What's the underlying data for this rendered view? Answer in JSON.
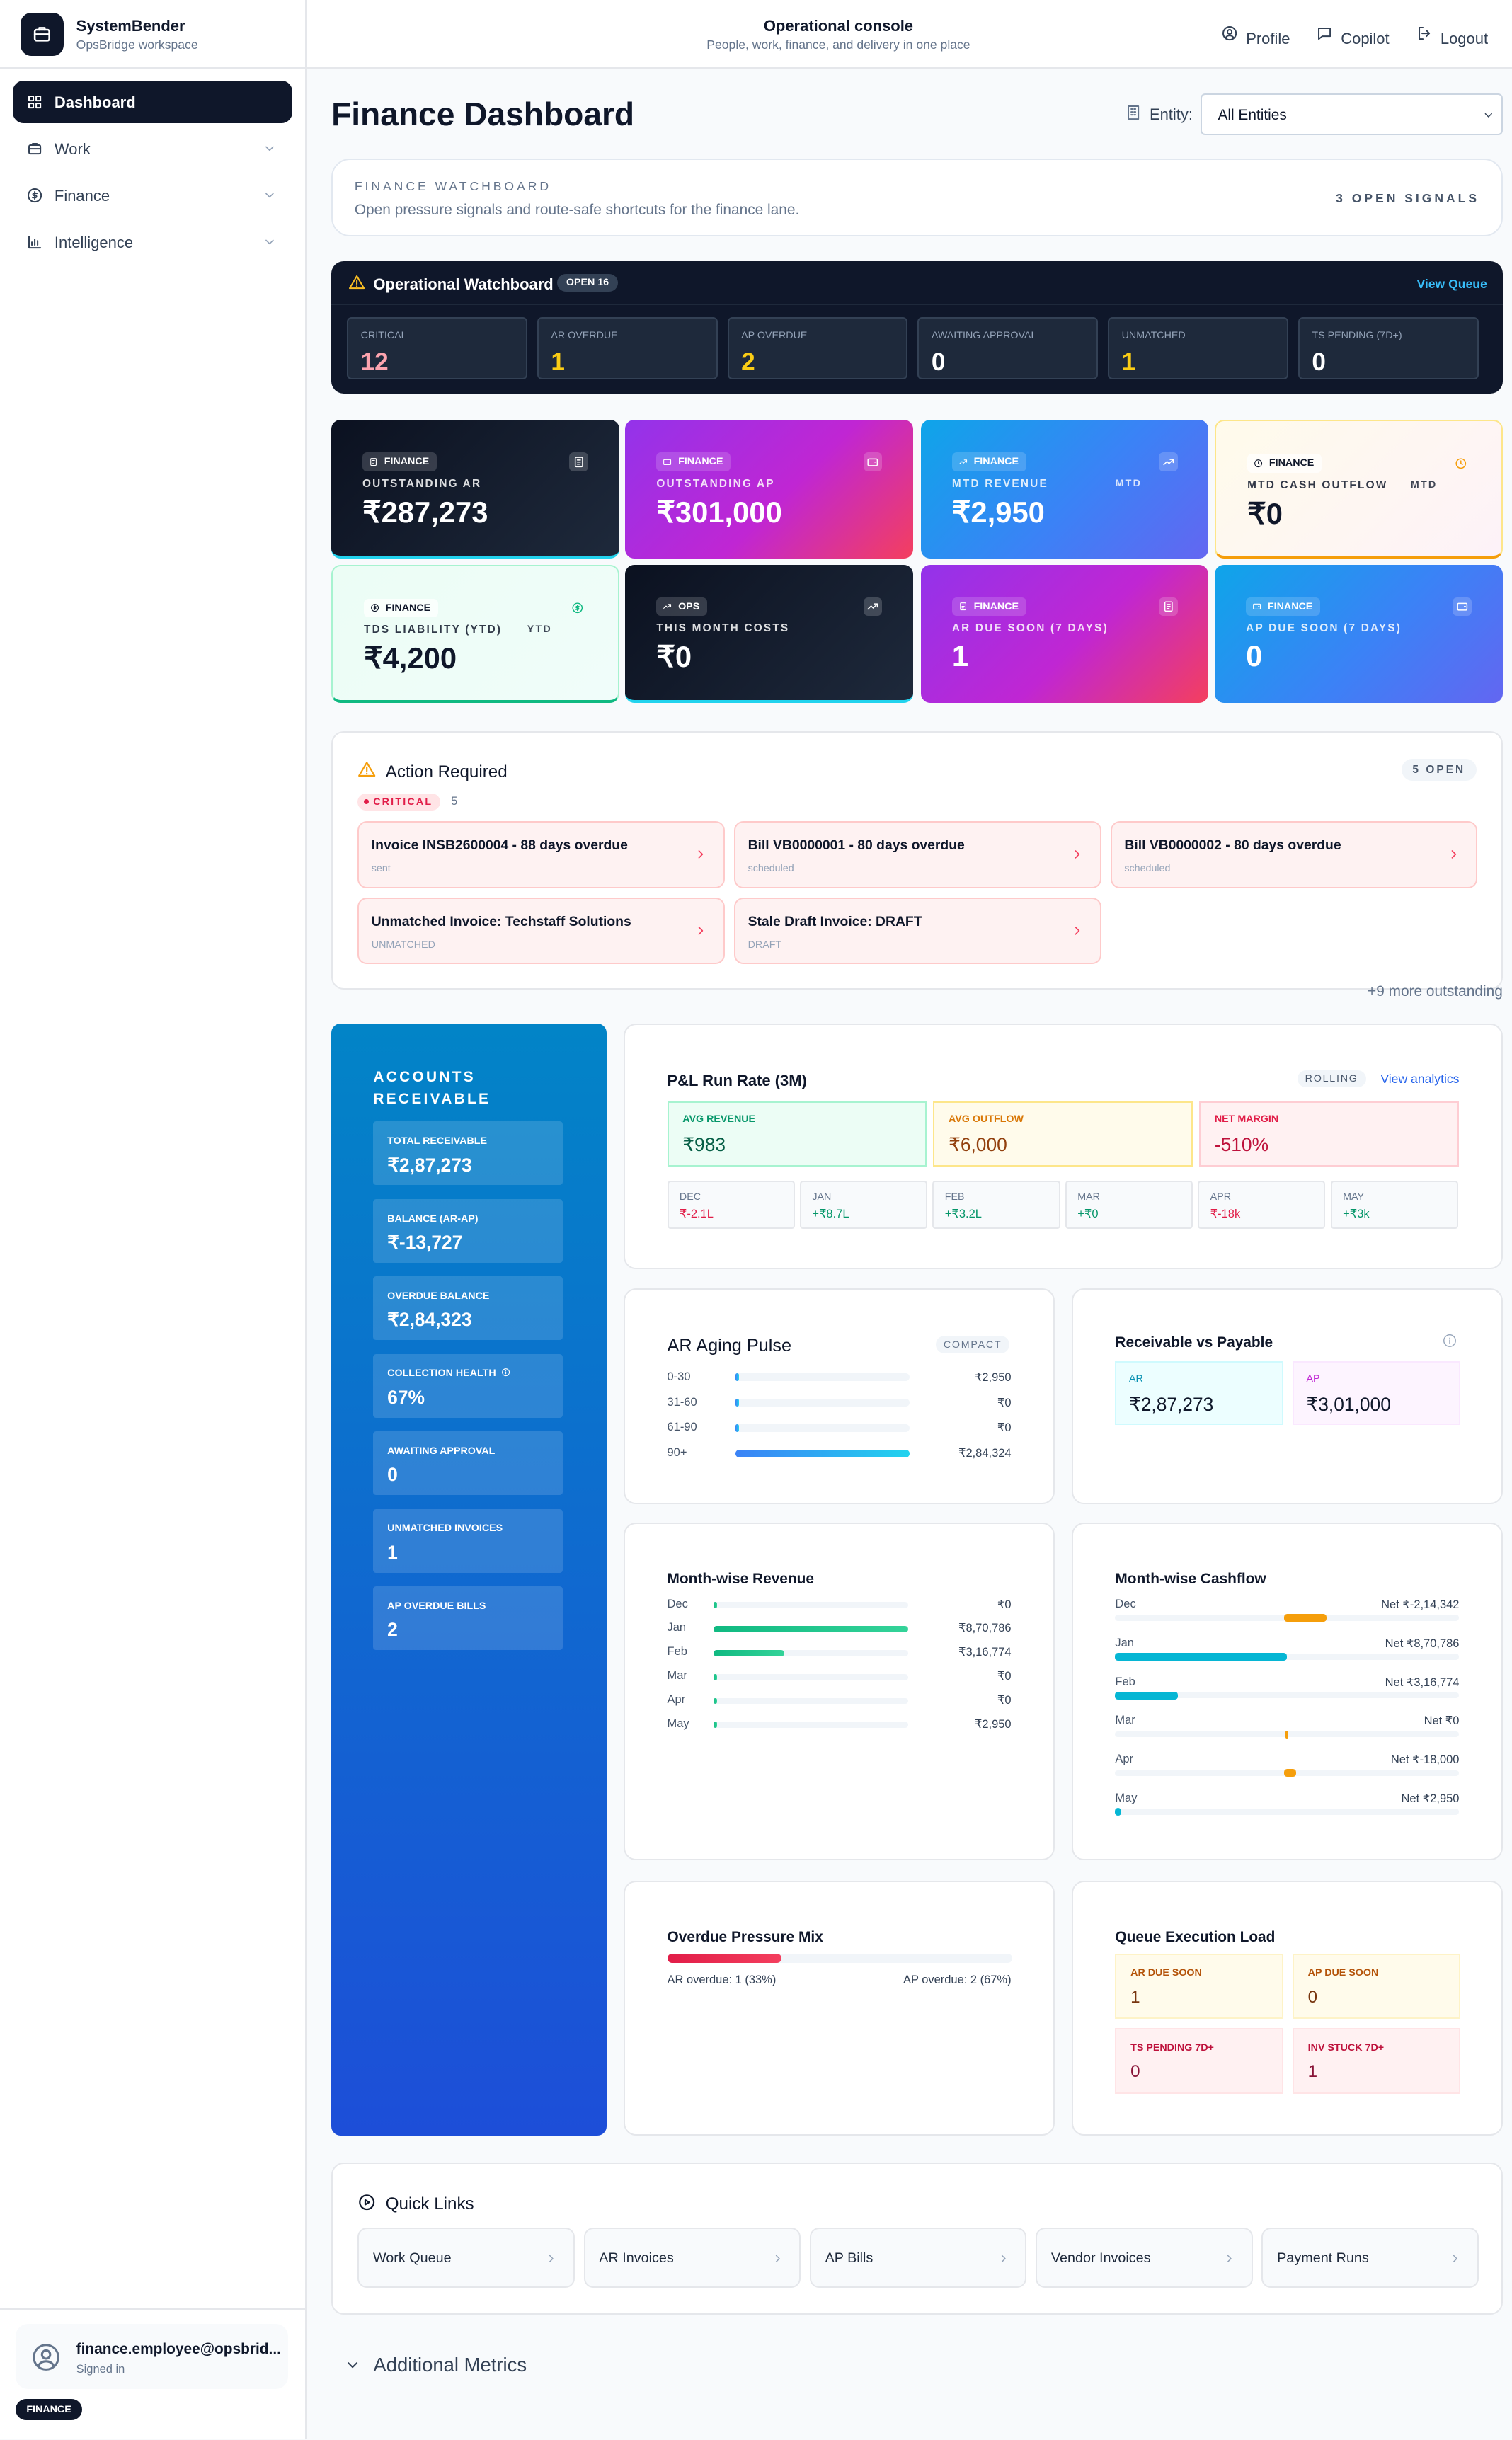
{
  "sidebar": {
    "brand": "SystemBender",
    "workspace": "OpsBridge workspace",
    "nav": [
      "Dashboard",
      "Work",
      "Finance",
      "Intelligence"
    ],
    "user": {
      "email": "finance.employee@opsbrid...",
      "status": "Signed in",
      "role": "FINANCE"
    }
  },
  "topbar": {
    "title": "Operational console",
    "subtitle": "People, work, finance, and delivery in one place",
    "actions": [
      "Profile",
      "Copilot",
      "Logout"
    ]
  },
  "header": {
    "title": "Finance Dashboard",
    "entity_label": "Entity:",
    "entity_value": "All Entities"
  },
  "watchboard": {
    "title": "FINANCE WATCHBOARD",
    "description": "Open pressure signals and route-safe shortcuts for the finance lane.",
    "signals": "3 OPEN SIGNALS"
  },
  "operational": {
    "title": "Operational Watchboard",
    "badge": "OPEN 16",
    "link": "View Queue",
    "tiles": [
      {
        "label": "CRITICAL",
        "value": 12
      },
      {
        "label": "AR OVERDUE",
        "value": 1
      },
      {
        "label": "AP OVERDUE",
        "value": 2
      },
      {
        "label": "AWAITING APPROVAL",
        "value": 0
      },
      {
        "label": "UNMATCHED",
        "value": 1
      },
      {
        "label": "TS PENDING (7D+)",
        "value": 0
      }
    ]
  },
  "kpis": [
    {
      "tag": "FINANCE",
      "label": "OUTSTANDING AR",
      "value": "₹287,273"
    },
    {
      "tag": "FINANCE",
      "label": "OUTSTANDING AP",
      "value": "₹301,000"
    },
    {
      "tag": "FINANCE",
      "label": "MTD REVENUE",
      "period": "MTD",
      "value": "₹2,950"
    },
    {
      "tag": "FINANCE",
      "label": "MTD CASH OUTFLOW",
      "period": "MTD",
      "value": "₹0"
    },
    {
      "tag": "FINANCE",
      "label": "TDS LIABILITY (YTD)",
      "period": "YTD",
      "value": "₹4,200"
    },
    {
      "tag": "OPS",
      "label": "THIS MONTH COSTS",
      "value": "₹0"
    },
    {
      "tag": "FINANCE",
      "label": "AR DUE SOON (7 DAYS)",
      "value": 1
    },
    {
      "tag": "FINANCE",
      "label": "AP DUE SOON (7 DAYS)",
      "value": 0
    }
  ],
  "action_required": {
    "title": "Action Required",
    "count": "5 OPEN",
    "severity": "CRITICAL",
    "severity_count": 5,
    "items": [
      {
        "title": "Invoice INSB2600004 - 88 days overdue",
        "status": "sent"
      },
      {
        "title": "Bill VB0000001 - 80 days overdue",
        "status": "scheduled"
      },
      {
        "title": "Bill VB0000002 - 80 days overdue",
        "status": "scheduled"
      },
      {
        "title": "Unmatched Invoice: Techstaff Solutions",
        "status": "UNMATCHED"
      },
      {
        "title": "Stale Draft Invoice: DRAFT",
        "status": "DRAFT"
      }
    ],
    "more": "+9 more outstanding"
  },
  "ar_panel": {
    "title": "ACCOUNTS RECEIVABLE",
    "tiles": [
      {
        "label": "TOTAL RECEIVABLE",
        "value": "₹2,87,273"
      },
      {
        "label": "BALANCE (AR-AP)",
        "value": "₹-13,727"
      },
      {
        "label": "OVERDUE BALANCE",
        "value": "₹2,84,323"
      },
      {
        "label": "COLLECTION HEALTH",
        "value": "67%"
      },
      {
        "label": "AWAITING APPROVAL",
        "value": 0
      },
      {
        "label": "UNMATCHED INVOICES",
        "value": 1
      },
      {
        "label": "AP OVERDUE BILLS",
        "value": 2
      }
    ]
  },
  "pnl": {
    "title": "P&L Run Rate (3M)",
    "badge": "ROLLING",
    "link": "View analytics",
    "summary": [
      {
        "label": "AVG REVENUE",
        "value": "₹983"
      },
      {
        "label": "AVG OUTFLOW",
        "value": "₹6,000"
      },
      {
        "label": "NET MARGIN",
        "value": "-510%"
      }
    ],
    "months": [
      {
        "label": "DEC",
        "value": "₹-2.1L"
      },
      {
        "label": "JAN",
        "value": "+₹8.7L"
      },
      {
        "label": "FEB",
        "value": "+₹3.2L"
      },
      {
        "label": "MAR",
        "value": "+₹0"
      },
      {
        "label": "APR",
        "value": "₹-18k"
      },
      {
        "label": "MAY",
        "value": "+₹3k"
      }
    ]
  },
  "ar_aging": {
    "title": "AR Aging Pulse",
    "badge": "COMPACT",
    "buckets": [
      {
        "label": "0-30",
        "amount": 2950,
        "amount_label": "₹2,950"
      },
      {
        "label": "31-60",
        "amount": 0,
        "amount_label": "₹0"
      },
      {
        "label": "61-90",
        "amount": 0,
        "amount_label": "₹0"
      },
      {
        "label": "90+",
        "amount": 284324,
        "amount_label": "₹2,84,324"
      }
    ]
  },
  "receivable_vs_payable": {
    "title": "Receivable vs Payable",
    "items": [
      {
        "label": "AR",
        "value": "₹2,87,273"
      },
      {
        "label": "AP",
        "value": "₹3,01,000"
      }
    ]
  },
  "revenue": {
    "title": "Month-wise Revenue",
    "months": [
      {
        "label": "Dec",
        "amount": 0,
        "amount_label": "₹0"
      },
      {
        "label": "Jan",
        "amount": 870786,
        "amount_label": "₹8,70,786"
      },
      {
        "label": "Feb",
        "amount": 316774,
        "amount_label": "₹3,16,774"
      },
      {
        "label": "Mar",
        "amount": 0,
        "amount_label": "₹0"
      },
      {
        "label": "Apr",
        "amount": 0,
        "amount_label": "₹0"
      },
      {
        "label": "May",
        "amount": 2950,
        "amount_label": "₹2,950"
      }
    ]
  },
  "cashflow": {
    "title": "Month-wise Cashflow",
    "months": [
      {
        "label": "Dec",
        "net": -214342,
        "net_label": "Net ₹-2,14,342"
      },
      {
        "label": "Jan",
        "net": 870786,
        "net_label": "Net ₹8,70,786"
      },
      {
        "label": "Feb",
        "net": 316774,
        "net_label": "Net ₹3,16,774"
      },
      {
        "label": "Mar",
        "net": 0,
        "net_label": "Net ₹0"
      },
      {
        "label": "Apr",
        "net": -18000,
        "net_label": "Net ₹-18,000"
      },
      {
        "label": "May",
        "net": 2950,
        "net_label": "Net ₹2,950"
      }
    ]
  },
  "overdue_mix": {
    "title": "Overdue Pressure Mix",
    "ar": "AR overdue: 1 (33%)",
    "ap": "AP overdue: 2 (67%)"
  },
  "queue_load": {
    "title": "Queue Execution Load",
    "tiles": [
      {
        "label": "AR DUE SOON",
        "value": 1
      },
      {
        "label": "AP DUE SOON",
        "value": 0
      },
      {
        "label": "TS PENDING 7D+",
        "value": 0
      },
      {
        "label": "INV STUCK 7D+",
        "value": 1
      }
    ]
  },
  "quick_links": {
    "title": "Quick Links",
    "links": [
      "Work Queue",
      "AR Invoices",
      "AP Bills",
      "Vendor Invoices",
      "Payment Runs"
    ]
  },
  "additional_metrics": {
    "title": "Additional Metrics"
  }
}
